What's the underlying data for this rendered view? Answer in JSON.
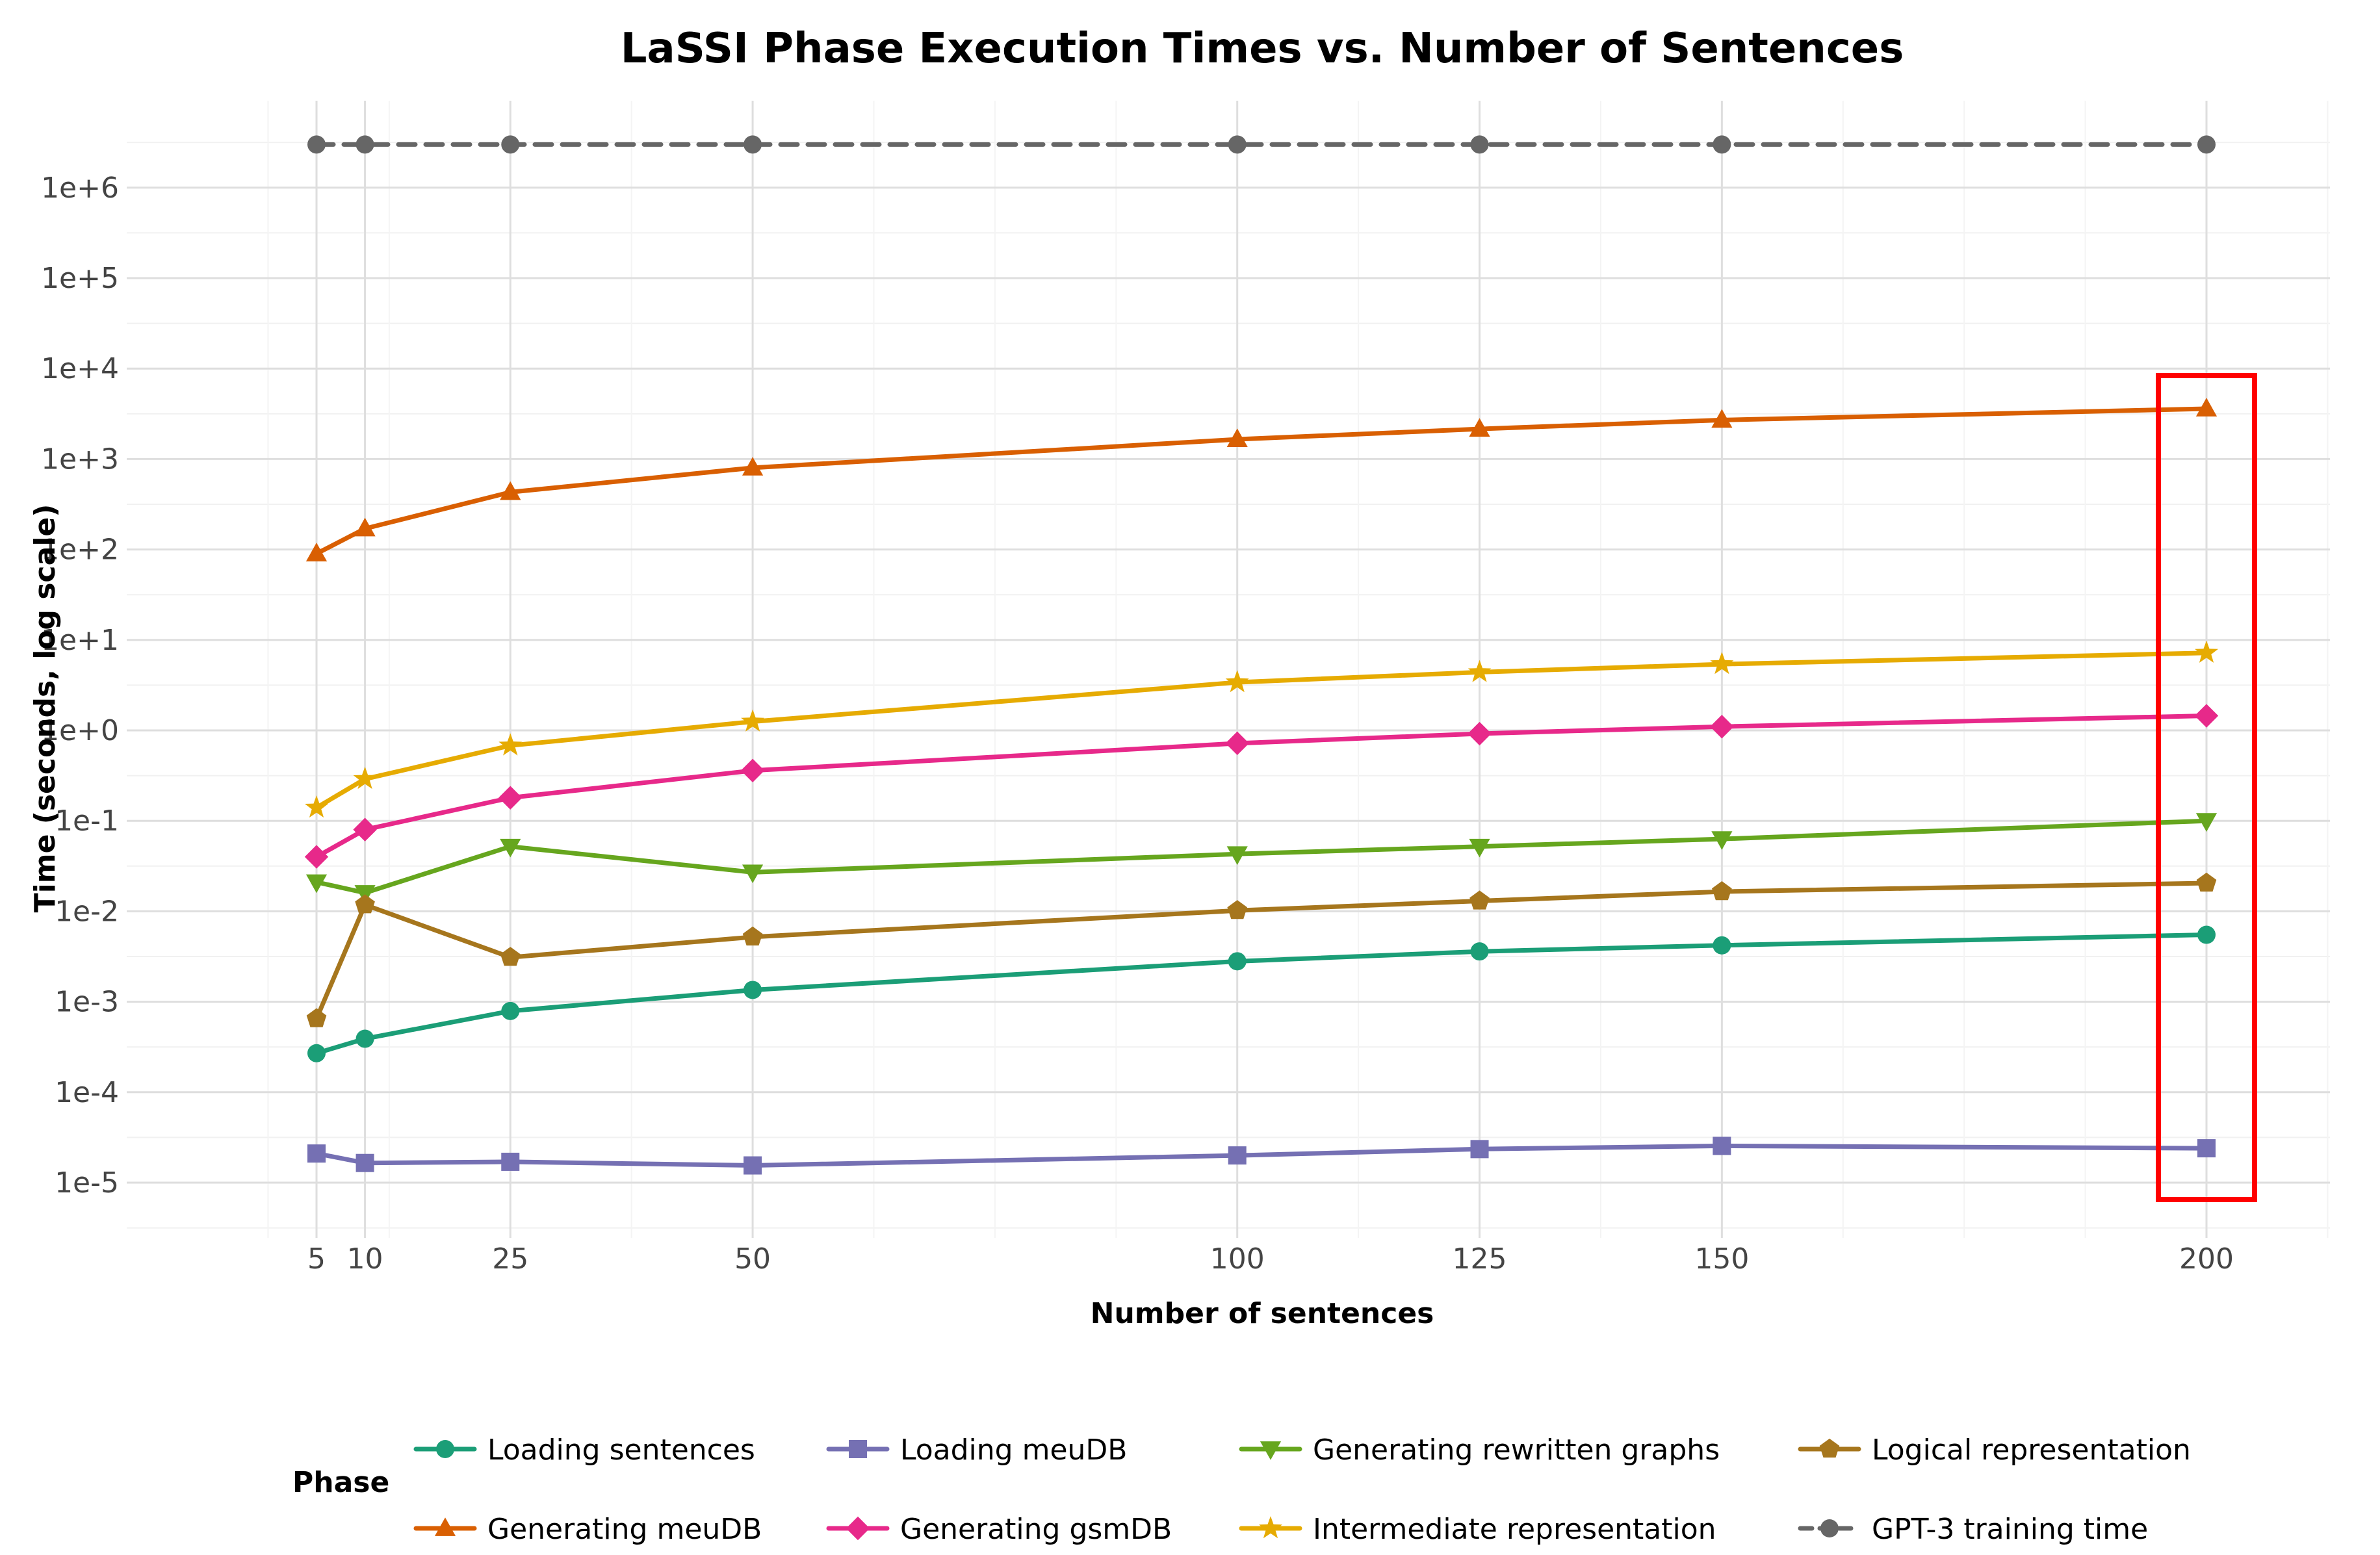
{
  "chart_data": {
    "type": "line",
    "title": "LaSSI Phase Execution Times vs. Number of Sentences",
    "xlabel": "Number of sentences",
    "ylabel": "Time (seconds, log scale)",
    "yscale": "log10",
    "x": [
      5,
      10,
      25,
      50,
      100,
      125,
      150,
      200
    ],
    "xticks": [
      "5",
      "10",
      "25",
      "50",
      "100",
      "125",
      "150",
      "200"
    ],
    "yticks": [
      "1e-5",
      "1e-4",
      "1e-3",
      "1e-2",
      "1e-1",
      "1e+0",
      "1e+1",
      "1e+2",
      "1e+3",
      "1e+4",
      "1e+5",
      "1e+6"
    ],
    "legend_title": "Phase",
    "legend_position": "bottom",
    "grid": true,
    "highlight": {
      "x": 200,
      "color": "#ff0000"
    },
    "series": [
      {
        "name": "Loading sentences",
        "color": "#1b9e77",
        "marker": "circle",
        "dashed": false,
        "values": [
          0.00027,
          0.00039,
          0.00079,
          0.00135,
          0.0028,
          0.0036,
          0.0042,
          0.0055
        ]
      },
      {
        "name": "Loading meuDB",
        "color": "#7570b3",
        "marker": "square",
        "dashed": false,
        "values": [
          2.1e-05,
          1.65e-05,
          1.7e-05,
          1.55e-05,
          2e-05,
          2.35e-05,
          2.55e-05,
          2.4e-05
        ]
      },
      {
        "name": "Generating rewritten graphs",
        "color": "#66a61e",
        "marker": "triangle-down",
        "dashed": false,
        "values": [
          0.021,
          0.016,
          0.052,
          0.027,
          0.043,
          0.052,
          0.063,
          0.1
        ]
      },
      {
        "name": "Logical representation",
        "color": "#a6761d",
        "marker": "pentagon",
        "dashed": false,
        "values": [
          0.00065,
          0.0118,
          0.0031,
          0.0052,
          0.0102,
          0.013,
          0.0165,
          0.0205
        ]
      },
      {
        "name": "Generating meuDB",
        "color": "#d95f02",
        "marker": "triangle-up",
        "dashed": false,
        "values": [
          90,
          170,
          430,
          800,
          1650,
          2150,
          2700,
          3600
        ]
      },
      {
        "name": "Generating gsmDB",
        "color": "#e7298a",
        "marker": "diamond",
        "dashed": false,
        "values": [
          0.04,
          0.08,
          0.18,
          0.36,
          0.72,
          0.92,
          1.1,
          1.45
        ]
      },
      {
        "name": "Intermediate representation",
        "color": "#e6ab02",
        "marker": "star",
        "dashed": false,
        "values": [
          0.14,
          0.29,
          0.68,
          1.25,
          3.4,
          4.4,
          5.4,
          7.2
        ]
      },
      {
        "name": "GPT-3 training time",
        "color": "#666666",
        "marker": "circle",
        "dashed": true,
        "values": [
          3000000,
          3000000,
          3000000,
          3000000,
          3000000,
          3000000,
          3000000,
          3000000
        ]
      }
    ]
  }
}
